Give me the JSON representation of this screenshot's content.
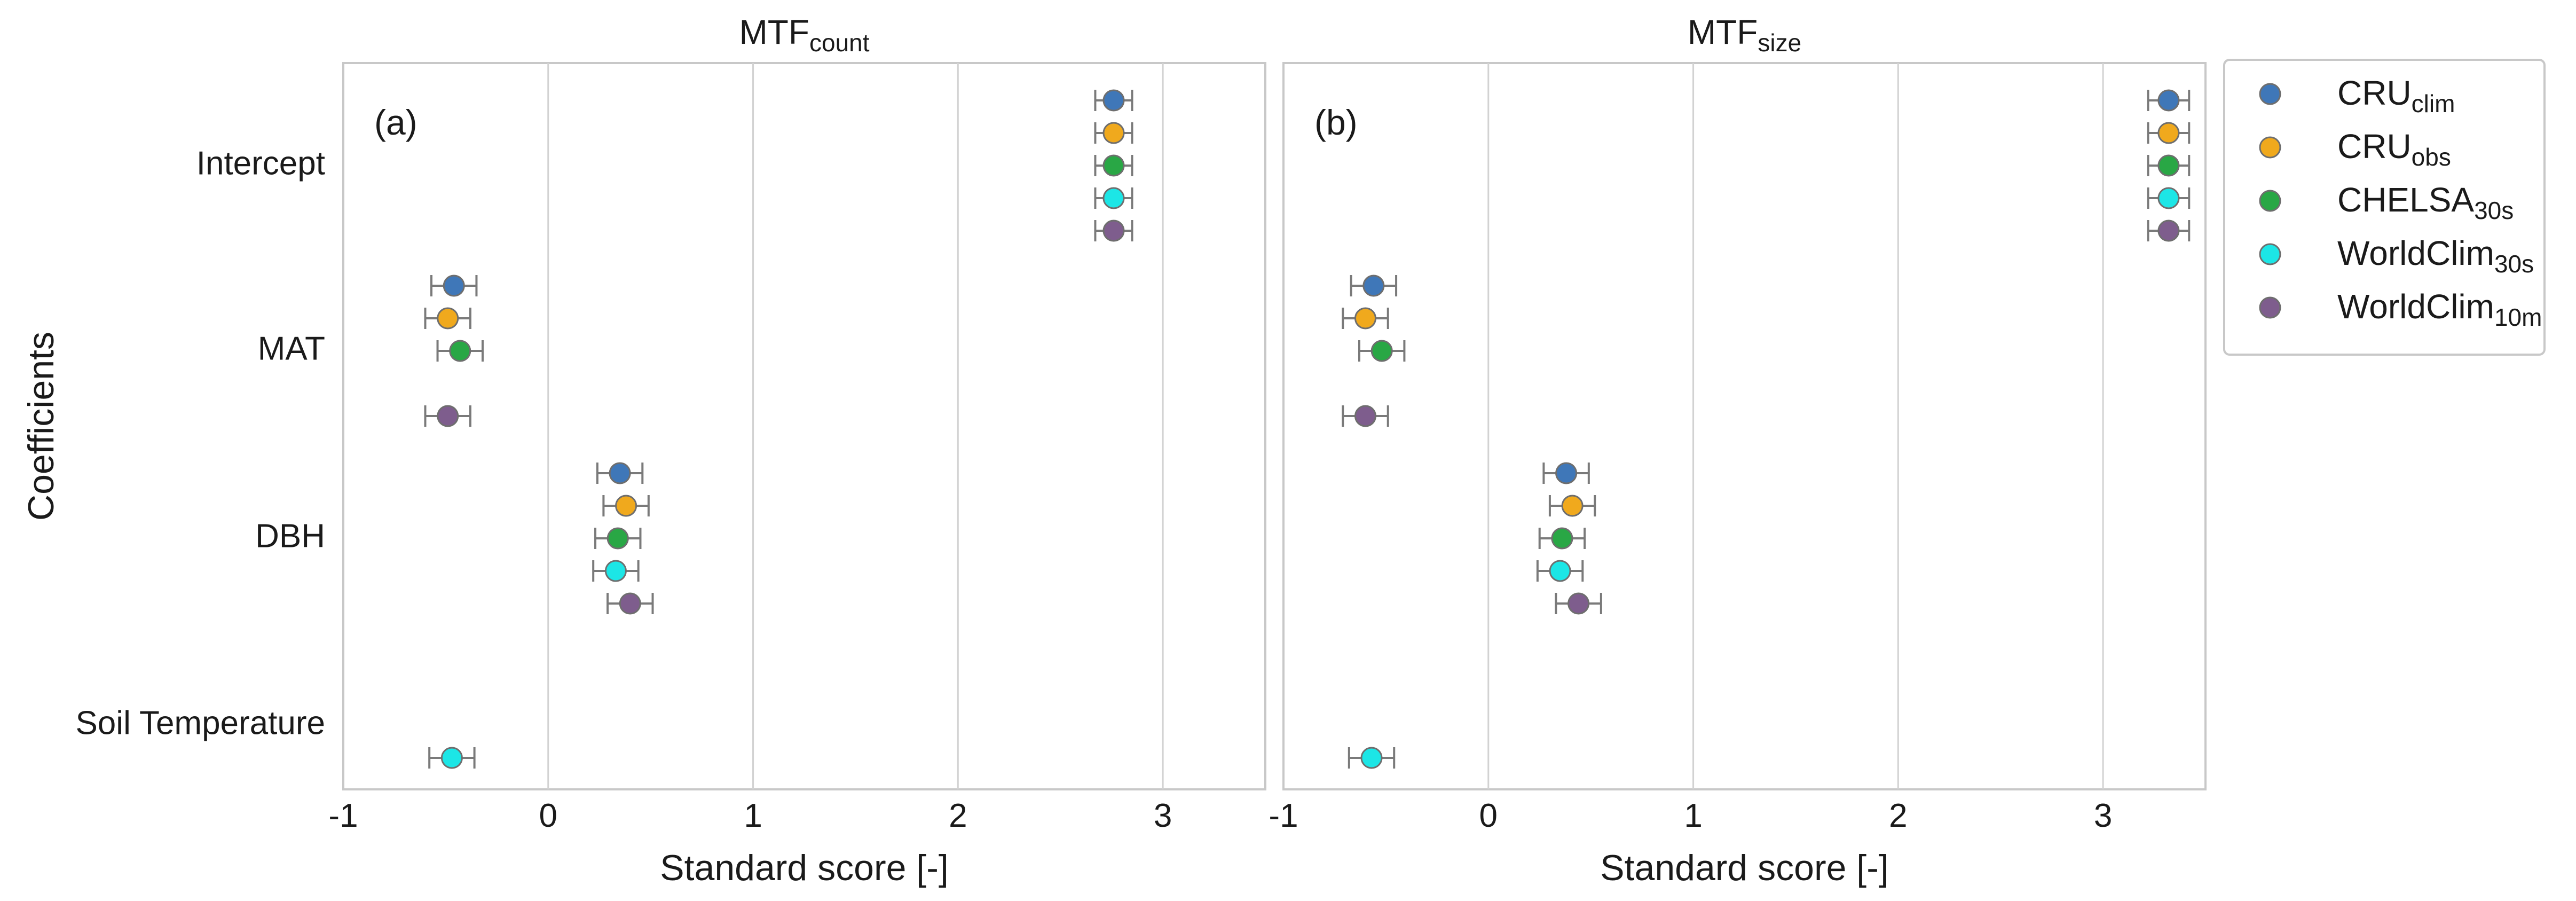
{
  "chart_data": {
    "type": "scatter",
    "shared": {
      "xlabel": "Standard score [-]",
      "ylabel": "Coefficients",
      "xlim": [
        -1,
        3.5
      ],
      "xticks": [
        -1,
        0,
        1,
        2,
        3
      ],
      "xtick_labels": [
        "-1",
        "0",
        "1",
        "2",
        "3"
      ],
      "categories": [
        "Intercept",
        "MAT",
        "DBH",
        "Soil Temperature"
      ],
      "grid": "vertical",
      "error_bars": true
    },
    "series": [
      {
        "name_base": "CRU",
        "name_sub": "clim",
        "color": "#3f77b8"
      },
      {
        "name_base": "CRU",
        "name_sub": "obs",
        "color": "#f0a91d"
      },
      {
        "name_base": "CHELSA",
        "name_sub": "30s",
        "color": "#29a745"
      },
      {
        "name_base": "WorldClim",
        "name_sub": "30s",
        "color": "#1ce6e6"
      },
      {
        "name_base": "WorldClim",
        "name_sub": "10m",
        "color": "#7e5d8d"
      }
    ],
    "legend": {
      "placement": "outside-right-top"
    },
    "panels": [
      {
        "tag": "(a)",
        "title_base": "MTF",
        "title_sub": "count",
        "points": [
          {
            "category": "Intercept",
            "series": 0,
            "value": 2.76,
            "err": 0.09
          },
          {
            "category": "Intercept",
            "series": 1,
            "value": 2.76,
            "err": 0.09
          },
          {
            "category": "Intercept",
            "series": 2,
            "value": 2.76,
            "err": 0.09
          },
          {
            "category": "Intercept",
            "series": 3,
            "value": 2.76,
            "err": 0.09
          },
          {
            "category": "Intercept",
            "series": 4,
            "value": 2.76,
            "err": 0.09
          },
          {
            "category": "MAT",
            "series": 0,
            "value": -0.46,
            "err": 0.11
          },
          {
            "category": "MAT",
            "series": 1,
            "value": -0.49,
            "err": 0.11
          },
          {
            "category": "MAT",
            "series": 2,
            "value": -0.43,
            "err": 0.11
          },
          {
            "category": "MAT",
            "series": 4,
            "value": -0.49,
            "err": 0.11
          },
          {
            "category": "DBH",
            "series": 0,
            "value": 0.35,
            "err": 0.11
          },
          {
            "category": "DBH",
            "series": 1,
            "value": 0.38,
            "err": 0.11
          },
          {
            "category": "DBH",
            "series": 2,
            "value": 0.34,
            "err": 0.11
          },
          {
            "category": "DBH",
            "series": 3,
            "value": 0.33,
            "err": 0.11
          },
          {
            "category": "DBH",
            "series": 4,
            "value": 0.4,
            "err": 0.11
          },
          {
            "category": "Soil Temperature",
            "series": 3,
            "value": -0.47,
            "err": 0.11
          }
        ]
      },
      {
        "tag": "(b)",
        "title_base": "MTF",
        "title_sub": "size",
        "points": [
          {
            "category": "Intercept",
            "series": 0,
            "value": 3.32,
            "err": 0.1
          },
          {
            "category": "Intercept",
            "series": 1,
            "value": 3.32,
            "err": 0.1
          },
          {
            "category": "Intercept",
            "series": 2,
            "value": 3.32,
            "err": 0.1
          },
          {
            "category": "Intercept",
            "series": 3,
            "value": 3.32,
            "err": 0.1
          },
          {
            "category": "Intercept",
            "series": 4,
            "value": 3.32,
            "err": 0.1
          },
          {
            "category": "MAT",
            "series": 0,
            "value": -0.56,
            "err": 0.11
          },
          {
            "category": "MAT",
            "series": 1,
            "value": -0.6,
            "err": 0.11
          },
          {
            "category": "MAT",
            "series": 2,
            "value": -0.52,
            "err": 0.11
          },
          {
            "category": "MAT",
            "series": 4,
            "value": -0.6,
            "err": 0.11
          },
          {
            "category": "DBH",
            "series": 0,
            "value": 0.38,
            "err": 0.11
          },
          {
            "category": "DBH",
            "series": 1,
            "value": 0.41,
            "err": 0.11
          },
          {
            "category": "DBH",
            "series": 2,
            "value": 0.36,
            "err": 0.11
          },
          {
            "category": "DBH",
            "series": 3,
            "value": 0.35,
            "err": 0.11
          },
          {
            "category": "DBH",
            "series": 4,
            "value": 0.44,
            "err": 0.11
          },
          {
            "category": "Soil Temperature",
            "series": 3,
            "value": -0.57,
            "err": 0.11
          }
        ]
      }
    ]
  }
}
